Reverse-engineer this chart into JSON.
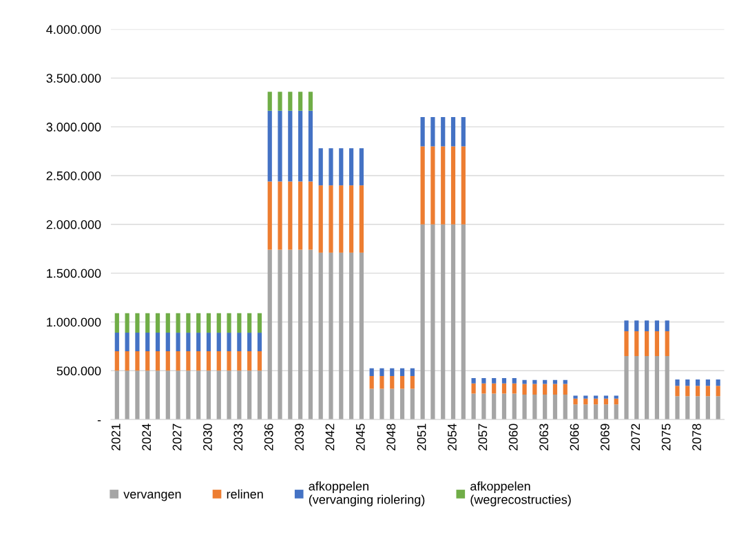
{
  "chart_data": {
    "type": "bar",
    "stacked": true,
    "categories": [
      "2021",
      null,
      null,
      "2024",
      null,
      null,
      "2027",
      null,
      null,
      "2030",
      null,
      null,
      "2033",
      null,
      null,
      "2036",
      null,
      null,
      "2039",
      null,
      null,
      "2042",
      null,
      null,
      "2045",
      null,
      null,
      "2048",
      null,
      null,
      "2051",
      null,
      null,
      "2054",
      null,
      null,
      "2057",
      null,
      null,
      "2060",
      null,
      null,
      "2063",
      null,
      null,
      "2066",
      null,
      null,
      "2069",
      null,
      null,
      "2072",
      null,
      null,
      "2075",
      null,
      null,
      "2078",
      null,
      null
    ],
    "series": [
      {
        "name": "vervangen",
        "color": "#a5a5a5",
        "values": [
          500000,
          500000,
          500000,
          500000,
          500000,
          500000,
          500000,
          500000,
          500000,
          500000,
          500000,
          500000,
          500000,
          500000,
          500000,
          1740000,
          1740000,
          1740000,
          1740000,
          1740000,
          1710000,
          1710000,
          1710000,
          1710000,
          1710000,
          315000,
          315000,
          315000,
          315000,
          315000,
          2000000,
          2000000,
          2000000,
          2000000,
          2000000,
          265000,
          265000,
          265000,
          265000,
          265000,
          255000,
          255000,
          255000,
          255000,
          255000,
          155000,
          155000,
          155000,
          155000,
          155000,
          650000,
          650000,
          650000,
          650000,
          650000,
          240000,
          240000,
          240000,
          240000,
          240000
        ]
      },
      {
        "name": "relinen",
        "color": "#ed7d31",
        "values": [
          200000,
          200000,
          200000,
          200000,
          200000,
          200000,
          200000,
          200000,
          200000,
          200000,
          200000,
          200000,
          200000,
          200000,
          200000,
          700000,
          700000,
          700000,
          700000,
          700000,
          690000,
          690000,
          690000,
          690000,
          690000,
          130000,
          130000,
          130000,
          130000,
          130000,
          800000,
          800000,
          800000,
          800000,
          800000,
          105000,
          105000,
          105000,
          105000,
          105000,
          110000,
          110000,
          110000,
          110000,
          110000,
          60000,
          60000,
          60000,
          60000,
          60000,
          255000,
          255000,
          255000,
          255000,
          255000,
          105000,
          105000,
          105000,
          105000,
          105000
        ]
      },
      {
        "name": "afkoppelen\n(vervanging riolering)",
        "color": "#4472c4",
        "values": [
          190000,
          190000,
          190000,
          190000,
          190000,
          190000,
          190000,
          190000,
          190000,
          190000,
          190000,
          190000,
          190000,
          190000,
          190000,
          725000,
          725000,
          725000,
          725000,
          725000,
          380000,
          380000,
          380000,
          380000,
          380000,
          80000,
          80000,
          80000,
          80000,
          80000,
          300000,
          300000,
          300000,
          300000,
          300000,
          55000,
          55000,
          55000,
          55000,
          55000,
          40000,
          40000,
          40000,
          40000,
          40000,
          30000,
          30000,
          30000,
          30000,
          30000,
          110000,
          110000,
          110000,
          110000,
          110000,
          65000,
          65000,
          65000,
          65000,
          65000
        ]
      },
      {
        "name": "afkoppelen\n(wegrecostructies)",
        "color": "#70ad47",
        "values": [
          200000,
          200000,
          200000,
          200000,
          200000,
          200000,
          200000,
          200000,
          200000,
          200000,
          200000,
          200000,
          200000,
          200000,
          200000,
          195000,
          195000,
          195000,
          195000,
          195000,
          null,
          null,
          null,
          null,
          null,
          null,
          null,
          null,
          null,
          null,
          null,
          null,
          null,
          null,
          null,
          null,
          null,
          null,
          null,
          null,
          null,
          null,
          null,
          null,
          null,
          null,
          null,
          null,
          null,
          null,
          null,
          null,
          null,
          null,
          null,
          null,
          null,
          null,
          null,
          null
        ]
      }
    ],
    "ylim": [
      0,
      4000000
    ],
    "yticks": [
      {
        "value": 0,
        "label": "-"
      },
      {
        "value": 500000,
        "label": "500.000"
      },
      {
        "value": 1000000,
        "label": "1.000.000"
      },
      {
        "value": 1500000,
        "label": "1.500.000"
      },
      {
        "value": 2000000,
        "label": "2.000.000"
      },
      {
        "value": 2500000,
        "label": "2.500.000"
      },
      {
        "value": 3000000,
        "label": "3.000.000"
      },
      {
        "value": 3500000,
        "label": "3.500.000"
      },
      {
        "value": 4000000,
        "label": "4.000.000"
      }
    ],
    "grid": "y",
    "legend": "bottom"
  }
}
